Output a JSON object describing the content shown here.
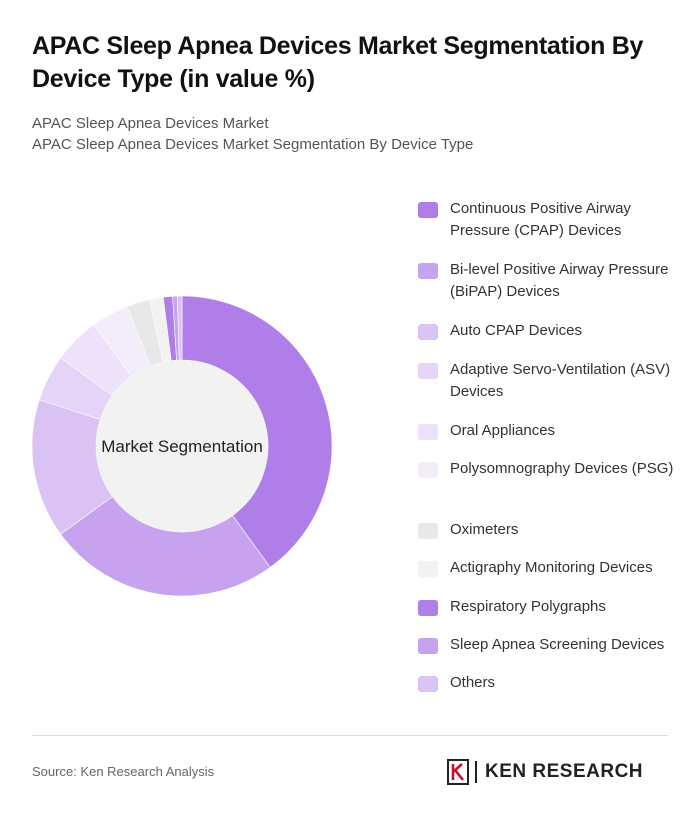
{
  "title": "APAC Sleep Apnea Devices Market Segmentation By Device Type (in value %)",
  "subtitle_1": "APAC Sleep Apnea Devices Market",
  "subtitle_2": "APAC Sleep Apnea Devices Market Segmentation By Device Type",
  "footer": {
    "source": "Source: Ken Research Analysis",
    "brand": "KEN RESEARCH"
  },
  "chart_data": {
    "type": "pie",
    "center_label": "Market Segmentation",
    "legend_position": "right",
    "categories": [
      "Continuous Positive Airway Pressure (CPAP) Devices",
      "Bi-level Positive Airway Pressure (BiPAP) Devices",
      "Auto CPAP Devices",
      "Adaptive Servo-Ventilation (ASV) Devices",
      "Oral Appliances",
      "Polysomnography Devices (PSG)",
      "Oximeters",
      "Actigraphy Monitoring Devices",
      "Respiratory Polygraphs",
      "Sleep Apnea Screening Devices",
      "Others"
    ],
    "values": [
      40,
      25,
      15,
      5,
      5,
      4,
      2.5,
      1.5,
      1,
      0.5,
      0.5
    ],
    "colors": [
      "#b07ee8",
      "#c7a2ef",
      "#dac3f4",
      "#e5d4f7",
      "#ede2fa",
      "#f3edfb",
      "#e8e8e8",
      "#f2f2f2",
      "#b07ee8",
      "#c7a2ef",
      "#dac3f4"
    ]
  }
}
